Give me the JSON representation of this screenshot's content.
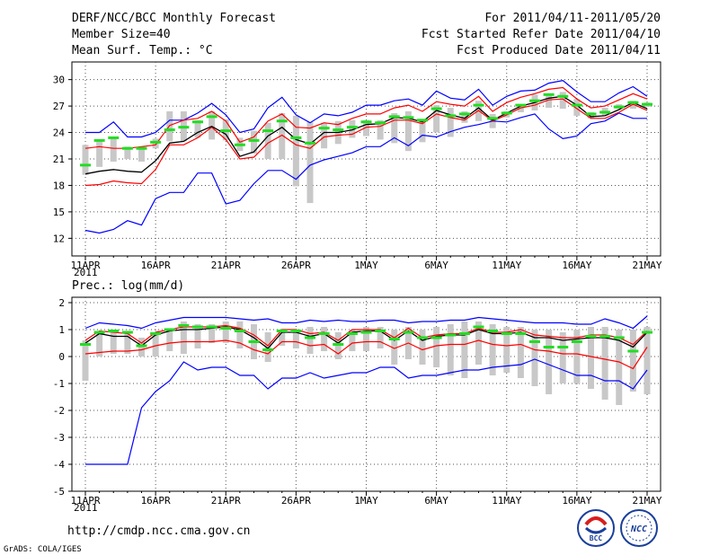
{
  "header": {
    "title": "DERF/NCC/BCC Monthly Forecast",
    "member_size": "Member Size=40",
    "variable": "Mean Surf. Temp.: °C",
    "period": "For 2011/04/11-2011/05/20",
    "started": "Fcst Started Refer Date 2011/04/10",
    "produced": "Fcst Produced Date 2011/04/11"
  },
  "footer": {
    "url": "http://cmdp.ncc.cma.gov.cn",
    "credit": "GrADS: COLA/IGES",
    "logo_bcc": "BCC",
    "logo_ncc": "NCC"
  },
  "colors": {
    "max_min": "#0000ff",
    "range_line": "#ff0000",
    "mean": "#000000",
    "box": "#c8c8c8",
    "median": "#22dd22",
    "grid": "#555555"
  },
  "chart_data": [
    {
      "type": "line",
      "title": "Mean Surf. Temp.: °C",
      "x_tick_labels": [
        "11APR",
        "16APR",
        "21APR",
        "26APR",
        "1MAY",
        "6MAY",
        "11MAY",
        "16MAY",
        "21MAY"
      ],
      "x_year_label": "2011",
      "y_tick_labels": [
        "12",
        "15",
        "18",
        "21",
        "24",
        "27",
        "30"
      ],
      "y_ticks": [
        12,
        15,
        18,
        21,
        24,
        27,
        30
      ],
      "ylim": [
        10,
        32
      ],
      "days": 41,
      "series": [
        {
          "name": "max",
          "values": [
            24.0,
            24.0,
            25.2,
            23.5,
            23.5,
            24.0,
            25.4,
            25.4,
            26.2,
            27.3,
            26.0,
            24.0,
            24.4,
            26.8,
            28.0,
            26.0,
            25.1,
            26.1,
            25.9,
            26.3,
            27.1,
            27.1,
            27.6,
            27.8,
            27.1,
            28.7,
            27.9,
            27.7,
            28.9,
            27.1,
            28.1,
            28.7,
            28.8,
            29.6,
            29.9,
            28.6,
            27.5,
            27.5,
            28.5,
            29.2,
            28.1
          ]
        },
        {
          "name": "max_member",
          "values": [
            22.2,
            22.4,
            22.2,
            22.2,
            22.4,
            22.6,
            24.8,
            25.4,
            25.6,
            26.4,
            25.3,
            22.9,
            23.5,
            25.3,
            26.1,
            24.6,
            24.5,
            25.1,
            24.9,
            25.6,
            26.1,
            26.1,
            26.8,
            27.1,
            26.4,
            27.5,
            27.2,
            27.0,
            28.1,
            26.4,
            27.4,
            28.0,
            28.4,
            28.9,
            29.1,
            27.8,
            26.8,
            27.0,
            27.7,
            28.4,
            27.8
          ]
        },
        {
          "name": "mean",
          "values": [
            19.3,
            19.6,
            19.8,
            19.6,
            19.5,
            20.8,
            22.8,
            23.0,
            24.0,
            24.7,
            23.8,
            21.3,
            21.8,
            23.6,
            24.6,
            23.2,
            22.7,
            24.0,
            24.0,
            24.3,
            24.9,
            25.0,
            25.7,
            25.6,
            25.2,
            26.5,
            26.0,
            25.6,
            26.8,
            25.4,
            26.2,
            27.0,
            27.4,
            27.9,
            28.1,
            27.1,
            25.8,
            25.9,
            26.6,
            27.4,
            26.7
          ]
        },
        {
          "name": "min_member",
          "values": [
            18.0,
            18.1,
            18.5,
            18.3,
            18.2,
            19.8,
            22.6,
            22.6,
            23.4,
            24.6,
            23.2,
            21.0,
            21.2,
            22.8,
            23.7,
            22.6,
            22.2,
            23.5,
            23.7,
            23.8,
            24.6,
            24.7,
            25.4,
            25.4,
            25.0,
            26.1,
            25.7,
            25.4,
            26.5,
            25.3,
            26.0,
            26.8,
            27.1,
            27.7,
            27.8,
            26.7,
            25.6,
            25.6,
            26.3,
            27.2,
            26.5
          ]
        },
        {
          "name": "min",
          "values": [
            12.9,
            12.6,
            13.0,
            14.0,
            13.5,
            16.5,
            17.2,
            17.2,
            19.4,
            19.4,
            15.9,
            16.3,
            18.2,
            19.7,
            19.7,
            18.7,
            20.3,
            20.9,
            21.3,
            21.7,
            22.4,
            22.4,
            23.4,
            22.5,
            23.7,
            23.5,
            24.1,
            24.6,
            24.9,
            25.3,
            25.2,
            25.7,
            26.1,
            24.4,
            23.3,
            23.6,
            25.0,
            25.3,
            26.2,
            25.6,
            25.6
          ]
        },
        {
          "name": "median",
          "values": [
            20.3,
            23.1,
            23.4,
            22.2,
            22.2,
            22.9,
            24.3,
            24.6,
            25.2,
            25.8,
            24.2,
            22.6,
            23.1,
            24.2,
            25.3,
            23.4,
            22.8,
            24.5,
            24.3,
            24.6,
            25.2,
            25.1,
            25.8,
            25.7,
            25.4,
            26.7,
            25.9,
            26.1,
            27.1,
            25.6,
            26.2,
            27.1,
            27.6,
            28.3,
            28.1,
            27.1,
            26.1,
            26.3,
            26.9,
            27.4,
            27.2
          ]
        },
        {
          "name": "box_high",
          "values": [
            22.6,
            23.2,
            23.5,
            22.4,
            22.4,
            23.3,
            26.4,
            26.4,
            25.4,
            26.4,
            25.5,
            23.4,
            24.2,
            25.1,
            26.2,
            25.9,
            25.2,
            25.1,
            25.3,
            25.4,
            25.4,
            25.4,
            26.2,
            26.4,
            25.5,
            27.1,
            26.8,
            26.4,
            27.6,
            26.1,
            26.4,
            27.1,
            28.3,
            28.4,
            28.6,
            27.8,
            26.3,
            26.8,
            27.2,
            27.6,
            27.4
          ]
        },
        {
          "name": "box_low",
          "values": [
            19.2,
            20.1,
            20.7,
            21.0,
            20.7,
            22.2,
            23.0,
            23.0,
            23.4,
            23.2,
            23.1,
            21.9,
            21.6,
            21.0,
            21.0,
            17.9,
            16.0,
            22.2,
            22.7,
            23.4,
            23.6,
            23.2,
            22.8,
            21.9,
            22.9,
            24.0,
            23.5,
            25.1,
            25.3,
            24.5,
            25.7,
            26.3,
            26.5,
            26.8,
            26.7,
            25.9,
            25.6,
            25.9,
            26.7,
            26.7,
            26.9
          ]
        }
      ]
    },
    {
      "type": "line",
      "title": "Prec.: log(mm/d)",
      "x_tick_labels": [
        "11APR",
        "16APR",
        "21APR",
        "26APR",
        "1MAY",
        "6MAY",
        "11MAY",
        "16MAY",
        "21MAY"
      ],
      "x_year_label": "2011",
      "y_tick_labels": [
        "-5",
        "-4",
        "-3",
        "-2",
        "-1",
        "0",
        "1",
        "2"
      ],
      "y_ticks": [
        -5,
        -4,
        -3,
        -2,
        -1,
        0,
        1,
        2
      ],
      "ylim": [
        -5,
        2.2
      ],
      "days": 41,
      "series": [
        {
          "name": "max",
          "values": [
            1.05,
            1.25,
            1.2,
            1.15,
            1.05,
            1.25,
            1.35,
            1.45,
            1.45,
            1.45,
            1.45,
            1.4,
            1.35,
            1.4,
            1.25,
            1.25,
            1.35,
            1.3,
            1.35,
            1.3,
            1.3,
            1.35,
            1.35,
            1.25,
            1.3,
            1.3,
            1.35,
            1.35,
            1.45,
            1.4,
            1.35,
            1.3,
            1.25,
            1.25,
            1.25,
            1.2,
            1.2,
            1.4,
            1.25,
            1.05,
            1.5
          ]
        },
        {
          "name": "max_member",
          "values": [
            0.6,
            0.95,
            0.9,
            0.85,
            0.5,
            0.9,
            1.0,
            1.1,
            1.1,
            1.1,
            1.15,
            1.05,
            0.8,
            0.4,
            1.0,
            1.0,
            0.85,
            0.9,
            0.6,
            1.0,
            1.0,
            1.0,
            0.7,
            1.05,
            0.7,
            0.8,
            0.85,
            0.85,
            1.05,
            0.9,
            0.9,
            1.0,
            0.8,
            0.75,
            0.7,
            0.7,
            0.8,
            0.8,
            0.7,
            0.45,
            0.95
          ]
        },
        {
          "name": "mean",
          "values": [
            0.5,
            0.85,
            0.75,
            0.75,
            0.4,
            0.8,
            0.95,
            1.0,
            1.0,
            1.05,
            1.1,
            1.0,
            0.7,
            0.3,
            0.9,
            0.9,
            0.75,
            0.85,
            0.5,
            0.9,
            0.95,
            0.95,
            0.6,
            0.95,
            0.6,
            0.75,
            0.8,
            0.8,
            1.0,
            0.85,
            0.85,
            0.9,
            0.7,
            0.7,
            0.6,
            0.65,
            0.7,
            0.7,
            0.6,
            0.35,
            0.9
          ]
        },
        {
          "name": "min_member",
          "values": [
            0.1,
            0.15,
            0.2,
            0.2,
            0.25,
            0.4,
            0.5,
            0.55,
            0.55,
            0.55,
            0.6,
            0.5,
            0.25,
            0.1,
            0.55,
            0.55,
            0.4,
            0.45,
            0.1,
            0.5,
            0.55,
            0.55,
            0.3,
            0.5,
            0.25,
            0.4,
            0.45,
            0.45,
            0.6,
            0.45,
            0.4,
            0.45,
            0.25,
            0.2,
            0.1,
            0.1,
            0.0,
            -0.1,
            -0.2,
            -0.45,
            0.35
          ]
        },
        {
          "name": "min",
          "values": [
            -4.0,
            -4.0,
            -4.0,
            -4.0,
            -1.9,
            -1.3,
            -0.9,
            -0.2,
            -0.5,
            -0.4,
            -0.4,
            -0.7,
            -0.7,
            -1.2,
            -0.8,
            -0.8,
            -0.6,
            -0.8,
            -0.7,
            -0.6,
            -0.6,
            -0.4,
            -0.4,
            -0.8,
            -0.7,
            -0.7,
            -0.6,
            -0.5,
            -0.5,
            -0.4,
            -0.35,
            -0.3,
            -0.1,
            -0.3,
            -0.5,
            -0.7,
            -0.7,
            -0.9,
            -0.9,
            -1.2,
            -0.5
          ]
        },
        {
          "name": "median",
          "values": [
            0.45,
            0.9,
            0.95,
            0.9,
            0.4,
            0.85,
            1.0,
            1.15,
            1.1,
            1.1,
            1.05,
            0.95,
            0.55,
            0.25,
            0.95,
            0.95,
            0.7,
            0.85,
            0.45,
            0.85,
            0.9,
            0.95,
            0.65,
            0.9,
            0.7,
            0.7,
            0.8,
            0.85,
            1.1,
            0.95,
            0.85,
            0.85,
            0.55,
            0.35,
            0.35,
            0.55,
            0.75,
            0.75,
            0.7,
            0.2,
            0.9
          ]
        },
        {
          "name": "box_high",
          "values": [
            0.6,
            0.9,
            1.0,
            0.9,
            0.7,
            0.9,
            1.0,
            1.3,
            1.2,
            1.2,
            1.3,
            1.3,
            1.2,
            0.9,
            1.0,
            1.0,
            1.1,
            1.1,
            0.9,
            1.0,
            1.1,
            1.1,
            1.0,
            1.1,
            1.0,
            1.1,
            1.2,
            1.3,
            1.3,
            1.2,
            1.1,
            1.1,
            1.0,
            1.0,
            0.9,
            1.0,
            1.1,
            1.1,
            1.0,
            1.0,
            1.1
          ]
        },
        {
          "name": "box_low",
          "values": [
            -0.9,
            0.0,
            0.1,
            0.1,
            0.0,
            0.0,
            0.2,
            0.1,
            0.3,
            0.5,
            0.5,
            0.3,
            -0.1,
            -0.2,
            0.4,
            0.3,
            0.1,
            0.2,
            -0.1,
            0.2,
            0.2,
            0.3,
            -0.3,
            -0.1,
            -0.3,
            -0.4,
            -0.7,
            -0.8,
            -0.3,
            -0.7,
            -0.6,
            -0.8,
            -1.1,
            -1.4,
            -1.0,
            -1.0,
            -1.2,
            -1.6,
            -1.8,
            -1.3,
            -1.4
          ]
        }
      ]
    }
  ]
}
